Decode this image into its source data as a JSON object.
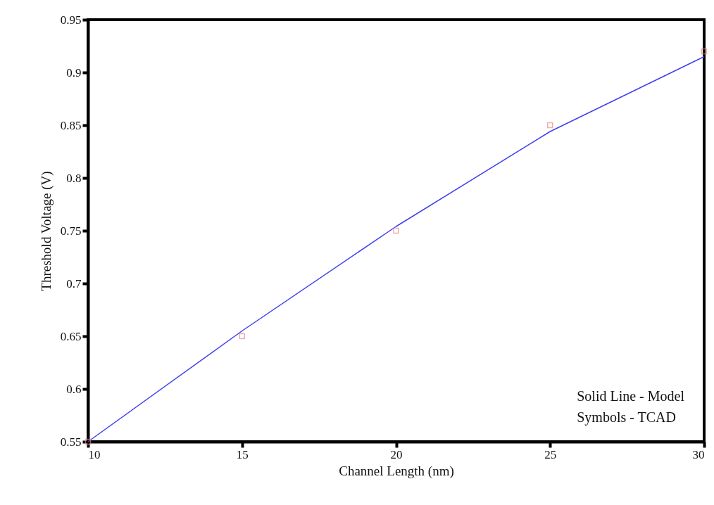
{
  "chart_data": {
    "type": "line",
    "xlabel": "Channel Length (nm)",
    "ylabel": "Threshold Voltage (V)",
    "xlim": [
      10,
      30
    ],
    "xticks": [
      10,
      15,
      20,
      25,
      30
    ],
    "ylim": [
      0.55,
      0.95
    ],
    "yticks": [
      0.55,
      0.6,
      0.65,
      0.7,
      0.75,
      0.8,
      0.85,
      0.9,
      0.95
    ],
    "grid": false,
    "annotations": [
      "Solid Line - Model",
      "Symbols - TCAD"
    ],
    "series": [
      {
        "color": "#3f3ff0",
        "x": [
          10,
          15,
          20,
          25,
          30
        ],
        "values": [
          0.55,
          0.655,
          0.754,
          0.844,
          0.915
        ],
        "marker": "none",
        "line_style": "solid"
      },
      {
        "type": "scatter",
        "color": "#e88c8c",
        "x": [
          10,
          15,
          20,
          25,
          30
        ],
        "values": [
          0.55,
          0.65,
          0.75,
          0.85,
          0.92
        ],
        "marker": "square"
      }
    ]
  }
}
